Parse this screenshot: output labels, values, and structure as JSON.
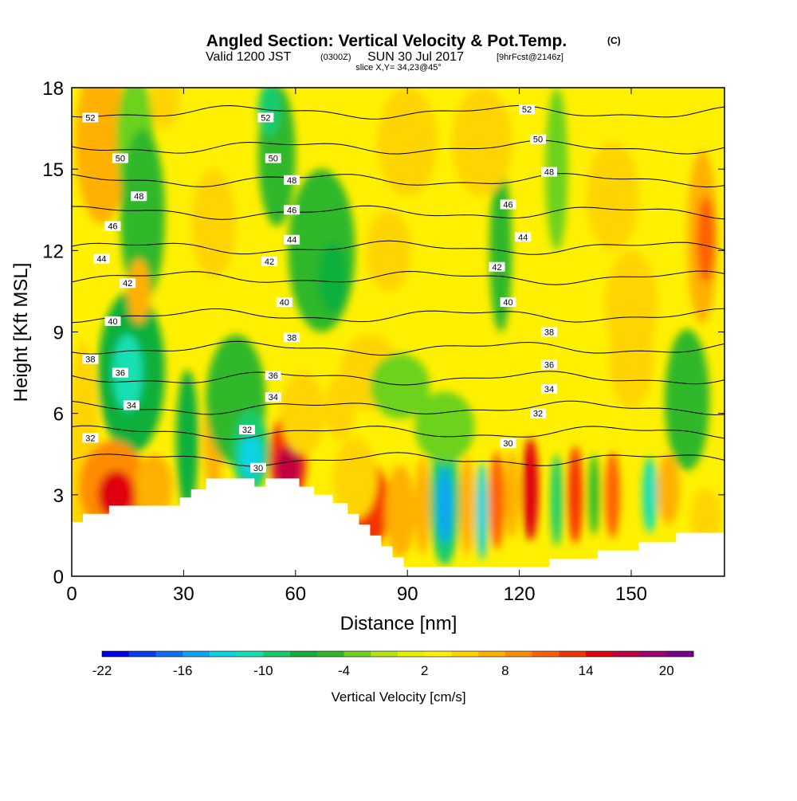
{
  "header": {
    "title_main": "Angled Section: Vertical Velocity & Pot.Temp.",
    "title_unit": "(C)",
    "valid_prefix": "Valid 1200 JST",
    "valid_utc": "(0300Z)",
    "valid_date": "SUN 30 Jul 2017",
    "forecast_tag": "[9hrFcst@2146z]",
    "slice_label": "slice X,Y= 34,23@45°"
  },
  "chart_data": {
    "type": "heatmap",
    "xlabel": "Distance [nm]",
    "ylabel": "Height [Kft MSL]",
    "xlim": [
      0,
      175
    ],
    "ylim": [
      0,
      18
    ],
    "x_ticks": [
      0,
      30,
      60,
      90,
      120,
      150
    ],
    "y_ticks": [
      0,
      3,
      6,
      9,
      12,
      15,
      18
    ],
    "x_tick_labels": [
      "0",
      "30",
      "60",
      "90",
      "120",
      "150"
    ],
    "y_tick_labels": [
      "0",
      "3",
      "6",
      "9",
      "12",
      "15",
      "18"
    ],
    "terrain": [
      [
        0,
        2
      ],
      [
        3,
        2
      ],
      [
        3,
        2.3
      ],
      [
        10,
        2.3
      ],
      [
        10,
        2.6
      ],
      [
        29,
        2.6
      ],
      [
        29,
        2.9
      ],
      [
        32,
        2.9
      ],
      [
        32,
        3.2
      ],
      [
        36,
        3.2
      ],
      [
        36,
        3.6
      ],
      [
        49,
        3.6
      ],
      [
        49,
        3.3
      ],
      [
        52,
        3.3
      ],
      [
        52,
        3.6
      ],
      [
        61,
        3.6
      ],
      [
        61,
        3.3
      ],
      [
        65,
        3.3
      ],
      [
        65,
        3.0
      ],
      [
        70,
        3.0
      ],
      [
        70,
        2.7
      ],
      [
        74,
        2.7
      ],
      [
        74,
        2.3
      ],
      [
        77,
        2.3
      ],
      [
        77,
        1.9
      ],
      [
        80,
        1.9
      ],
      [
        80,
        1.5
      ],
      [
        83,
        1.5
      ],
      [
        83,
        1.1
      ],
      [
        86,
        1.1
      ],
      [
        86,
        0.7
      ],
      [
        89,
        0.7
      ],
      [
        89,
        0.35
      ],
      [
        128,
        0.35
      ],
      [
        128,
        0.65
      ],
      [
        141,
        0.65
      ],
      [
        141,
        0.95
      ],
      [
        152,
        0.95
      ],
      [
        152,
        1.25
      ],
      [
        162,
        1.25
      ],
      [
        162,
        1.6
      ],
      [
        175,
        1.6
      ]
    ],
    "colorbar": {
      "label": "Vertical Velocity [cm/s]",
      "tick_labels": [
        "-22",
        "-16",
        "-10",
        "-4",
        "2",
        "8",
        "14",
        "20"
      ],
      "tick_values": [
        -22,
        -16,
        -10,
        -4,
        2,
        8,
        14,
        20
      ],
      "vmin": -22,
      "vmax": 22,
      "colors": [
        "#0000e0",
        "#0b3af0",
        "#0d6ef8",
        "#0aa6f5",
        "#08d4e3",
        "#12e0b4",
        "#14cc6e",
        "#10b03a",
        "#2eb82a",
        "#6cd21c",
        "#b4e414",
        "#e6f000",
        "#fff000",
        "#ffd400",
        "#ffb000",
        "#ff8c00",
        "#ff6000",
        "#f43400",
        "#e00010",
        "#c00040",
        "#a00070",
        "#7a0090"
      ]
    },
    "velocity_background": 2,
    "velocity_cells": [
      {
        "x": 3,
        "z": 4.2,
        "rx": 4,
        "rz": 4.5,
        "v": 5
      },
      {
        "x": 8,
        "z": 16,
        "rx": 7,
        "rz": 3,
        "v": 6
      },
      {
        "x": 17,
        "z": 16,
        "rx": 5,
        "rz": 2.5,
        "v": -4
      },
      {
        "x": 19,
        "z": 13.3,
        "rx": 6,
        "rz": 3.2,
        "v": -5
      },
      {
        "x": 16,
        "z": 7.5,
        "rx": 9,
        "rz": 3,
        "v": -7
      },
      {
        "x": 15,
        "z": 7.5,
        "rx": 4,
        "rz": 1.4,
        "v": -11
      },
      {
        "x": 18,
        "z": 10.5,
        "rx": 3,
        "rz": 1.2,
        "v": 8
      },
      {
        "x": 11,
        "z": 3.3,
        "rx": 9,
        "rz": 1.7,
        "v": 9
      },
      {
        "x": 12,
        "z": 3.0,
        "rx": 5,
        "rz": 0.9,
        "v": 14
      },
      {
        "x": 22,
        "z": 3.3,
        "rx": 5,
        "rz": 1.2,
        "v": 6
      },
      {
        "x": 31,
        "z": 5.0,
        "rx": 3,
        "rz": 2.6,
        "v": -7
      },
      {
        "x": 38,
        "z": 5.0,
        "rx": 2.5,
        "rz": 2.0,
        "v": 6
      },
      {
        "x": 44,
        "z": 6.5,
        "rx": 8,
        "rz": 2.4,
        "v": -5
      },
      {
        "x": 48,
        "z": 4.6,
        "rx": 5,
        "rz": 1.5,
        "v": -10
      },
      {
        "x": 48,
        "z": 4.4,
        "rx": 3,
        "rz": 0.8,
        "v": -14
      },
      {
        "x": 55,
        "z": 15.5,
        "rx": 5,
        "rz": 2.6,
        "v": -5
      },
      {
        "x": 53,
        "z": 17.2,
        "rx": 3,
        "rz": 1.0,
        "v": -9
      },
      {
        "x": 67,
        "z": 12.0,
        "rx": 9,
        "rz": 3.0,
        "v": -5
      },
      {
        "x": 70,
        "z": 11.0,
        "rx": 4,
        "rz": 1.3,
        "v": -8
      },
      {
        "x": 58,
        "z": 4.3,
        "rx": 5,
        "rz": 1.7,
        "v": 12
      },
      {
        "x": 58,
        "z": 4.0,
        "rx": 3.5,
        "rz": 0.8,
        "v": 17
      },
      {
        "x": 62,
        "z": 6.0,
        "rx": 6,
        "rz": 1.5,
        "v": 5
      },
      {
        "x": 80,
        "z": 2.6,
        "rx": 5,
        "rz": 1.6,
        "v": 12
      },
      {
        "x": 88,
        "z": 2.4,
        "rx": 4,
        "rz": 1.7,
        "v": 8
      },
      {
        "x": 76,
        "z": 3.6,
        "rx": 6,
        "rz": 1.5,
        "v": 5
      },
      {
        "x": 100,
        "z": 2.8,
        "rx": 4,
        "rz": 2.4,
        "v": -10
      },
      {
        "x": 100,
        "z": 2.6,
        "rx": 2,
        "rz": 1.4,
        "v": -16
      },
      {
        "x": 94,
        "z": 2.6,
        "rx": 2,
        "rz": 1.8,
        "v": 6
      },
      {
        "x": 106,
        "z": 2.6,
        "rx": 2,
        "rz": 1.8,
        "v": 6
      },
      {
        "x": 110,
        "z": 2.4,
        "rx": 1.6,
        "rz": 1.8,
        "v": -14
      },
      {
        "x": 114,
        "z": 2.8,
        "rx": 2,
        "rz": 1.8,
        "v": 11
      },
      {
        "x": 118,
        "z": 3.0,
        "rx": 2,
        "rz": 1.6,
        "v": 7
      },
      {
        "x": 123,
        "z": 3.2,
        "rx": 2.2,
        "rz": 1.9,
        "v": 15
      },
      {
        "x": 130,
        "z": 2.8,
        "rx": 1.6,
        "rz": 1.7,
        "v": -9
      },
      {
        "x": 135,
        "z": 3.0,
        "rx": 2,
        "rz": 1.8,
        "v": 13
      },
      {
        "x": 140,
        "z": 3.0,
        "rx": 1.5,
        "rz": 1.5,
        "v": -5
      },
      {
        "x": 145,
        "z": 3.0,
        "rx": 2,
        "rz": 1.6,
        "v": 10
      },
      {
        "x": 155,
        "z": 3.0,
        "rx": 2,
        "rz": 1.4,
        "v": -12
      },
      {
        "x": 160,
        "z": 3.2,
        "rx": 3,
        "rz": 1.3,
        "v": 6
      },
      {
        "x": 170,
        "z": 2.2,
        "rx": 4,
        "rz": 1.0,
        "v": 5
      },
      {
        "x": 115,
        "z": 12,
        "rx": 3,
        "rz": 3,
        "v": -5
      },
      {
        "x": 130,
        "z": 15,
        "rx": 3,
        "rz": 3,
        "v": -4
      },
      {
        "x": 110,
        "z": 16,
        "rx": 8,
        "rz": 2,
        "v": 4
      },
      {
        "x": 145,
        "z": 14,
        "rx": 7,
        "rz": 2,
        "v": 4
      },
      {
        "x": 150,
        "z": 10,
        "rx": 7,
        "rz": 2,
        "v": 4
      },
      {
        "x": 150,
        "z": 8,
        "rx": 6,
        "rz": 1.8,
        "v": 5
      },
      {
        "x": 90,
        "z": 16,
        "rx": 8,
        "rz": 2,
        "v": 4
      },
      {
        "x": 85,
        "z": 12,
        "rx": 6,
        "rz": 1.5,
        "v": 4
      },
      {
        "x": 38,
        "z": 13,
        "rx": 6,
        "rz": 2,
        "v": 4
      },
      {
        "x": 25,
        "z": 17.5,
        "rx": 4,
        "rz": 1,
        "v": 5
      },
      {
        "x": 169,
        "z": 12.5,
        "rx": 4,
        "rz": 3.2,
        "v": 8
      },
      {
        "x": 170,
        "z": 12.4,
        "rx": 2.5,
        "rz": 1.6,
        "v": 10
      },
      {
        "x": 165,
        "z": 6.5,
        "rx": 6,
        "rz": 2.6,
        "v": -6
      },
      {
        "x": 80,
        "z": 7.5,
        "rx": 8,
        "rz": 1.4,
        "v": 4
      },
      {
        "x": 100,
        "z": 5.5,
        "rx": 8,
        "rz": 1.3,
        "v": -4
      },
      {
        "x": 88,
        "z": 7.0,
        "rx": 8,
        "rz": 1.2,
        "v": -3
      },
      {
        "x": 72,
        "z": 6.2,
        "rx": 4,
        "rz": 1.2,
        "v": 4
      }
    ],
    "isentropes": [
      {
        "theta": 30,
        "z": 4.3
      },
      {
        "theta": 32,
        "z": 5.3
      },
      {
        "theta": 34,
        "z": 6.2
      },
      {
        "theta": 36,
        "z": 7.3
      },
      {
        "theta": 38,
        "z": 8.4
      },
      {
        "theta": 40,
        "z": 9.6
      },
      {
        "theta": 42,
        "z": 11.0
      },
      {
        "theta": 44,
        "z": 12.1
      },
      {
        "theta": 46,
        "z": 13.4
      },
      {
        "theta": 48,
        "z": 14.6
      },
      {
        "theta": 50,
        "z": 15.8
      },
      {
        "theta": 52,
        "z": 17.1
      }
    ],
    "contour_labels": [
      {
        "x": 5,
        "z": 16.9,
        "text": "52"
      },
      {
        "x": 52,
        "z": 16.9,
        "text": "52"
      },
      {
        "x": 122,
        "z": 17.2,
        "text": "52"
      },
      {
        "x": 13,
        "z": 15.4,
        "text": "50"
      },
      {
        "x": 54,
        "z": 15.4,
        "text": "50"
      },
      {
        "x": 125,
        "z": 16.1,
        "text": "50"
      },
      {
        "x": 18,
        "z": 14.0,
        "text": "48"
      },
      {
        "x": 59,
        "z": 14.6,
        "text": "48"
      },
      {
        "x": 128,
        "z": 14.9,
        "text": "48"
      },
      {
        "x": 11,
        "z": 12.9,
        "text": "46"
      },
      {
        "x": 59,
        "z": 13.5,
        "text": "46"
      },
      {
        "x": 117,
        "z": 13.7,
        "text": "46"
      },
      {
        "x": 8,
        "z": 11.7,
        "text": "44"
      },
      {
        "x": 59,
        "z": 12.4,
        "text": "44"
      },
      {
        "x": 121,
        "z": 12.5,
        "text": "44"
      },
      {
        "x": 15,
        "z": 10.8,
        "text": "42"
      },
      {
        "x": 53,
        "z": 11.6,
        "text": "42"
      },
      {
        "x": 114,
        "z": 11.4,
        "text": "42"
      },
      {
        "x": 11,
        "z": 9.4,
        "text": "40"
      },
      {
        "x": 57,
        "z": 10.1,
        "text": "40"
      },
      {
        "x": 117,
        "z": 10.1,
        "text": "40"
      },
      {
        "x": 5,
        "z": 8.0,
        "text": "38"
      },
      {
        "x": 59,
        "z": 8.8,
        "text": "38"
      },
      {
        "x": 128,
        "z": 9.0,
        "text": "38"
      },
      {
        "x": 13,
        "z": 7.5,
        "text": "36"
      },
      {
        "x": 54,
        "z": 7.4,
        "text": "36"
      },
      {
        "x": 128,
        "z": 7.8,
        "text": "36"
      },
      {
        "x": 16,
        "z": 6.3,
        "text": "34"
      },
      {
        "x": 54,
        "z": 6.6,
        "text": "34"
      },
      {
        "x": 128,
        "z": 6.9,
        "text": "34"
      },
      {
        "x": 5,
        "z": 5.1,
        "text": "32"
      },
      {
        "x": 47,
        "z": 5.4,
        "text": "32"
      },
      {
        "x": 125,
        "z": 6.0,
        "text": "32"
      },
      {
        "x": 50,
        "z": 4.0,
        "text": "30"
      },
      {
        "x": 117,
        "z": 4.9,
        "text": "30"
      }
    ]
  }
}
